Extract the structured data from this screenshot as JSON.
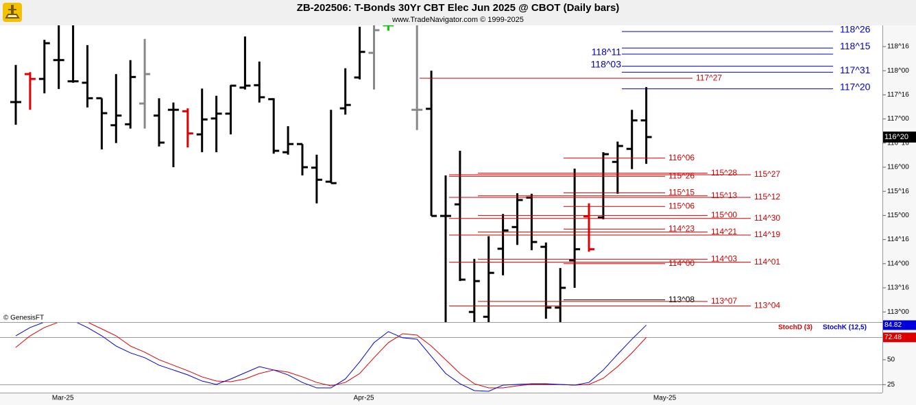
{
  "header": {
    "title": "ZB-202506:  T-Bonds 30Yr CBT Elec Jun 2025 @ CBOT  (Daily bars)",
    "subtitle": "www.TradeNavigator.com © 1999-2025",
    "credit": "© GenesisFT"
  },
  "chart_data": [
    {
      "type": "ohlc",
      "open": [
        117.35,
        117.93,
        117.83,
        118.22,
        117.78,
        117.75,
        117.43,
        116.87,
        116.89,
        117.32,
        117.07,
        117.19,
        117.16,
        116.68,
        117.01,
        117.11,
        117.65,
        117.7,
        117.41,
        116.31,
        116.48,
        115.99,
        115.7,
        117.22,
        117.86,
        118.37,
        118.94,
        null,
        117.19,
        117.21,
        114.99,
        115.23,
        113.0,
        112.9,
        114.31,
        114.76,
        115.37,
        114.35,
        113.09,
        114.07,
        114.98,
        114.96,
        116.11,
        116.38,
        116.97,
        null
      ],
      "high": [
        118.12,
        117.97,
        118.64,
        118.94,
        118.94,
        118.53,
        117.43,
        117.93,
        118.22,
        118.66,
        117.43,
        117.34,
        117.22,
        117.63,
        117.48,
        117.7,
        118.71,
        118.19,
        117.43,
        116.85,
        116.48,
        116.26,
        117.19,
        118.05,
        118.91,
        118.94,
        119.04,
        null,
        118.94,
        118.0,
        115.83,
        116.34,
        114.1,
        114.57,
        115.03,
        115.46,
        115.45,
        114.44,
        113.91,
        115.97,
        115.25,
        116.31,
        116.53,
        117.19,
        117.66,
        null
      ],
      "low": [
        116.88,
        117.19,
        117.53,
        117.62,
        117.75,
        117.24,
        116.37,
        116.5,
        116.8,
        116.8,
        116.43,
        116.0,
        116.41,
        116.31,
        116.31,
        116.68,
        117.61,
        117.34,
        116.28,
        116.26,
        115.83,
        115.25,
        115.67,
        117.09,
        117.82,
        117.61,
        118.83,
        null,
        116.77,
        114.99,
        112.6,
        113.64,
        112.6,
        112.6,
        113.76,
        114.39,
        114.28,
        112.86,
        112.6,
        113.5,
        114.25,
        114.92,
        115.45,
        115.96,
        116.07,
        null
      ],
      "close": [
        117.35,
        117.83,
        118.57,
        118.22,
        117.78,
        117.43,
        117.12,
        117.07,
        117.87,
        117.93,
        116.51,
        117.19,
        116.7,
        116.99,
        117.11,
        117.69,
        117.69,
        117.45,
        116.34,
        116.48,
        116.0,
        115.74,
        115.67,
        117.29,
        118.39,
        118.84,
        118.94,
        null,
        117.19,
        114.99,
        114.99,
        113.67,
        113.64,
        113.81,
        114.69,
        115.32,
        114.45,
        113.09,
        113.5,
        114.3,
        114.3,
        116.27,
        116.44,
        116.97,
        116.625,
        null
      ],
      "colors": [
        "#000000",
        "#e00000",
        "#000000",
        "#000000",
        "#000000",
        "#000000",
        "#000000",
        "#000000",
        "#000000",
        "#888888",
        "#000000",
        "#000000",
        "#e00000",
        "#000000",
        "#000000",
        "#000000",
        "#000000",
        "#000000",
        "#000000",
        "#000000",
        "#000000",
        "#000000",
        "#000000",
        "#000000",
        "#000000",
        "#888888",
        "#00cc00",
        null,
        "#888888",
        "#000000",
        "#000000",
        "#000000",
        "#000000",
        "#000000",
        "#000000",
        "#000000",
        "#000000",
        "#000000",
        "#000000",
        "#000000",
        "#e00000",
        "#000000",
        "#000000",
        "#000000",
        "#000000",
        null
      ],
      "ylim": [
        112.79,
        118.94
      ],
      "yticks": [
        {
          "value": 118.5,
          "label": "118^16"
        },
        {
          "value": 118,
          "label": "118^00"
        },
        {
          "value": 117.5,
          "label": "117^16"
        },
        {
          "value": 117,
          "label": "117^00"
        },
        {
          "value": 116.5,
          "label": "116^16"
        },
        {
          "value": 116,
          "label": "116^00"
        },
        {
          "value": 115.5,
          "label": "115^16"
        },
        {
          "value": 115,
          "label": "115^00"
        },
        {
          "value": 114.5,
          "label": "114^16"
        },
        {
          "value": 114,
          "label": "114^00"
        },
        {
          "value": 113.5,
          "label": "113^16"
        },
        {
          "value": 113,
          "label": "113^00"
        }
      ],
      "last_price": {
        "value": 116.625,
        "label": "116^20"
      },
      "levels": [
        {
          "value": 118.8125,
          "label": "118^26",
          "color": "#0000cc"
        },
        {
          "value": 118.46875,
          "label": "118^15",
          "color": "#0000cc"
        },
        {
          "value": 118.34375,
          "label": "118^11",
          "color": "#0000cc"
        },
        {
          "value": 118.09375,
          "label": "118^03",
          "color": "#0000cc"
        },
        {
          "value": 117.96875,
          "label": "117^31",
          "color": "#0000cc"
        },
        {
          "value": 117.625,
          "label": "117^20",
          "color": "#0000cc"
        },
        {
          "value": 117.84375,
          "label": "117^27",
          "color": "#cc0000"
        },
        {
          "value": 116.1875,
          "label": "116^06",
          "color": "#cc0000"
        },
        {
          "value": 115.875,
          "label": "115^28",
          "color": "#cc0000"
        },
        {
          "value": 115.84375,
          "label": "115^27",
          "color": "#cc0000"
        },
        {
          "value": 115.8125,
          "label": "115^26",
          "color": "#cc0000"
        },
        {
          "value": 115.46875,
          "label": "115^15",
          "color": "#cc0000"
        },
        {
          "value": 115.40625,
          "label": "115^13",
          "color": "#cc0000"
        },
        {
          "value": 115.375,
          "label": "115^12",
          "color": "#cc0000"
        },
        {
          "value": 115.1875,
          "label": "115^06",
          "color": "#cc0000"
        },
        {
          "value": 115,
          "label": "115^00",
          "color": "#cc0000"
        },
        {
          "value": 114.9375,
          "label": "114^30",
          "color": "#cc0000"
        },
        {
          "value": 114.71875,
          "label": "114^23",
          "color": "#cc0000"
        },
        {
          "value": 114.65625,
          "label": "114^21",
          "color": "#cc0000"
        },
        {
          "value": 114.59375,
          "label": "114^19",
          "color": "#cc0000"
        },
        {
          "value": 114.09375,
          "label": "114^03",
          "color": "#cc0000"
        },
        {
          "value": 114.03125,
          "label": "114^01",
          "color": "#cc0000"
        },
        {
          "value": 114,
          "label": "114^00",
          "color": "#cc0000"
        },
        {
          "value": 113.25,
          "label": "113^08",
          "color": "#000000"
        },
        {
          "value": 113.21875,
          "label": "113^07",
          "color": "#cc0000"
        },
        {
          "value": 113.125,
          "label": "113^04",
          "color": "#cc0000"
        }
      ]
    },
    {
      "type": "line",
      "categories": [
        null,
        null,
        null,
        "Mar-25",
        null,
        null,
        null,
        null,
        null,
        null,
        null,
        null,
        null,
        null,
        null,
        null,
        null,
        null,
        null,
        null,
        null,
        null,
        null,
        null,
        "Apr-25",
        null,
        null,
        null,
        null,
        null,
        null,
        null,
        null,
        null,
        null,
        null,
        null,
        null,
        null,
        null,
        null,
        null,
        null,
        null,
        null,
        "May-25"
      ],
      "series": [
        {
          "name": "StochD (3)",
          "color": "#dd0000",
          "last_label": "72.48",
          "values": [
            62.4,
            74.1,
            82.4,
            87.9,
            89.3,
            87.9,
            81.0,
            74.1,
            63.8,
            57.6,
            50.0,
            44.5,
            39.0,
            32.8,
            28.6,
            27.9,
            30.7,
            36.2,
            39.7,
            37.6,
            32.8,
            27.2,
            23.8,
            27.2,
            36.2,
            52.1,
            67.2,
            76.2,
            74.8,
            63.8,
            50.0,
            36.2,
            25.9,
            21.7,
            21.7,
            23.8,
            25.2,
            25.2,
            25.2,
            24.5,
            25.2,
            31.4,
            43.1,
            56.9,
            72.48,
            null
          ]
        },
        {
          "name": "StochK (12,5)",
          "color": "#0000dd",
          "last_label": "84.82",
          "values": [
            74.1,
            82.4,
            87.9,
            90.7,
            89.3,
            82.4,
            74.1,
            63.8,
            56.9,
            52.1,
            44.5,
            39.7,
            34.8,
            28.6,
            25.2,
            30.7,
            36.9,
            43.1,
            39.7,
            34.8,
            27.2,
            21.7,
            21.7,
            30.7,
            47.9,
            67.2,
            78.3,
            72.1,
            70.7,
            53.4,
            36.2,
            25.9,
            19.0,
            18.3,
            24.5,
            25.2,
            25.9,
            25.9,
            25.2,
            24.5,
            27.2,
            39.7,
            55.5,
            70.7,
            84.82,
            null
          ]
        }
      ],
      "ylim": [
        16.9,
        87.2
      ],
      "yticks": [
        50,
        25
      ]
    }
  ]
}
